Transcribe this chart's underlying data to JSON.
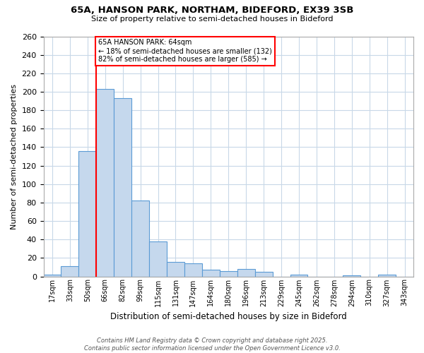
{
  "title_line1": "65A, HANSON PARK, NORTHAM, BIDEFORD, EX39 3SB",
  "title_line2": "Size of property relative to semi-detached houses in Bideford",
  "xlabel": "Distribution of semi-detached houses by size in Bideford",
  "ylabel": "Number of semi-detached properties",
  "footer_line1": "Contains HM Land Registry data © Crown copyright and database right 2025.",
  "footer_line2": "Contains public sector information licensed under the Open Government Licence v3.0.",
  "bin_labels": [
    "17sqm",
    "33sqm",
    "50sqm",
    "66sqm",
    "82sqm",
    "99sqm",
    "115sqm",
    "131sqm",
    "147sqm",
    "164sqm",
    "180sqm",
    "196sqm",
    "213sqm",
    "229sqm",
    "245sqm",
    "262sqm",
    "278sqm",
    "294sqm",
    "310sqm",
    "327sqm",
    "343sqm"
  ],
  "bar_values": [
    2,
    11,
    136,
    203,
    193,
    82,
    38,
    16,
    14,
    7,
    6,
    8,
    5,
    0,
    2,
    0,
    0,
    1,
    0,
    2,
    0
  ],
  "bar_color": "#c5d8ed",
  "bar_edge_color": "#5b9bd5",
  "property_label": "65A HANSON PARK: 64sqm",
  "pct_smaller": 18,
  "pct_larger": 82,
  "count_smaller": 132,
  "count_larger": 585,
  "red_line_bin": 3,
  "ylim": [
    0,
    260
  ],
  "yticks": [
    0,
    20,
    40,
    60,
    80,
    100,
    120,
    140,
    160,
    180,
    200,
    220,
    240,
    260
  ],
  "bin_edges": [
    0,
    1,
    2,
    3,
    4,
    5,
    6,
    7,
    8,
    9,
    10,
    11,
    12,
    13,
    14,
    15,
    16,
    17,
    18,
    19,
    20,
    21
  ],
  "background_color": "#ffffff",
  "grid_color": "#c8d8e8"
}
